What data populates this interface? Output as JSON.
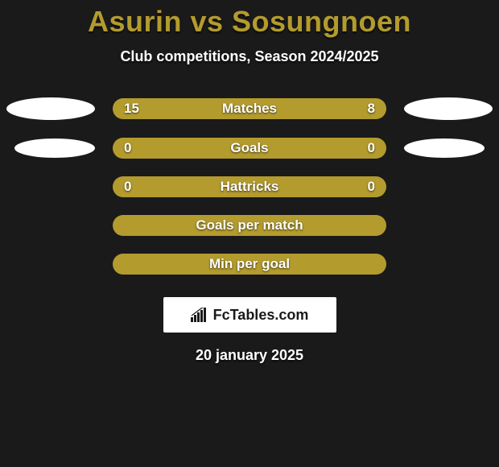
{
  "background_color": "#1a1a1a",
  "title": {
    "text": "Asurin vs Sosungnoen",
    "color": "#b39b2d"
  },
  "subtitle": "Club competitions, Season 2024/2025",
  "accent_color": "#b39b2d",
  "bar_bg_color": "#8a7724",
  "rows": [
    {
      "label": "Matches",
      "left_value": "15",
      "right_value": "8",
      "left_pct": 65,
      "right_pct": 35,
      "has_left_ellipse": true,
      "has_right_ellipse": true,
      "ellipse_style": 1
    },
    {
      "label": "Goals",
      "left_value": "0",
      "right_value": "0",
      "left_pct": 0,
      "right_pct": 0,
      "full_fill": true,
      "has_left_ellipse": true,
      "has_right_ellipse": true,
      "ellipse_style": 2
    },
    {
      "label": "Hattricks",
      "left_value": "0",
      "right_value": "0",
      "left_pct": 0,
      "right_pct": 0,
      "full_fill": true,
      "has_left_ellipse": false,
      "has_right_ellipse": false
    },
    {
      "label": "Goals per match",
      "left_value": "",
      "right_value": "",
      "full_fill": true,
      "has_left_ellipse": false,
      "has_right_ellipse": false
    },
    {
      "label": "Min per goal",
      "left_value": "",
      "right_value": "",
      "full_fill": true,
      "has_left_ellipse": false,
      "has_right_ellipse": false
    }
  ],
  "logo": {
    "text": "FcTables.com"
  },
  "date": "20 january 2025"
}
